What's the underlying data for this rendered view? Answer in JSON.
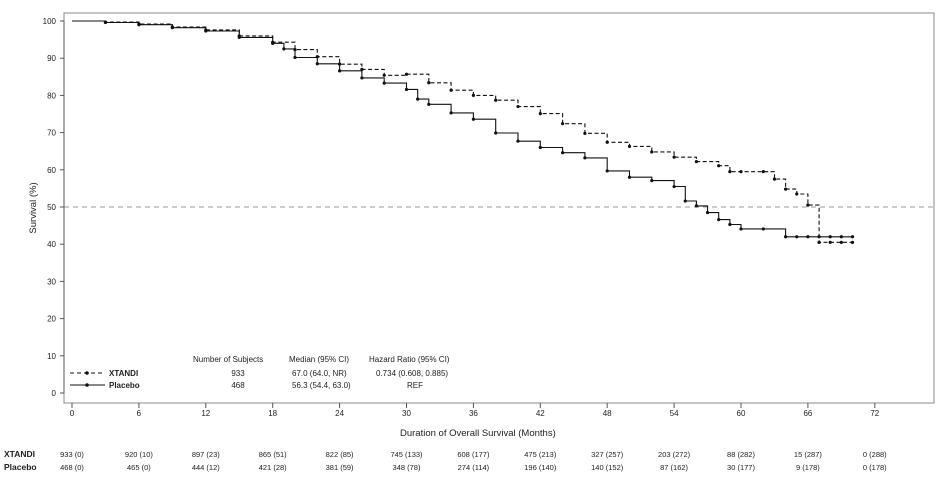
{
  "chart_data": {
    "type": "line",
    "xlabel": "Duration of Overall Survival (Months)",
    "ylabel": "Survival (%)",
    "xlim": [
      0,
      74
    ],
    "ylim": [
      0,
      100
    ],
    "x_ticks": [
      0,
      6,
      12,
      18,
      24,
      30,
      36,
      42,
      48,
      54,
      60,
      66,
      72
    ],
    "y_ticks": [
      0,
      10,
      20,
      30,
      40,
      50,
      60,
      70,
      80,
      90,
      100
    ],
    "reference_line": 50,
    "series": [
      {
        "name": "XTANDI",
        "color": "#111111",
        "line_style": "dashed",
        "x": [
          0,
          3,
          6,
          9,
          12,
          15,
          18,
          20,
          22,
          24,
          26,
          28,
          30,
          32,
          34,
          36,
          38,
          40,
          42,
          44,
          46,
          48,
          50,
          52,
          54,
          56,
          58,
          59,
          60,
          62,
          63,
          64,
          65,
          66,
          67,
          68,
          69,
          70
        ],
        "y": [
          100,
          99.7,
          99.2,
          98.4,
          97.6,
          96,
          94.3,
          92.3,
          90.4,
          88.4,
          87,
          85.4,
          85.7,
          83.4,
          81.4,
          80,
          78.7,
          77,
          75.1,
          72.4,
          69.8,
          67.4,
          66.3,
          64.8,
          63.4,
          62.2,
          61.1,
          59.5,
          59.5,
          59.5,
          57.5,
          54.8,
          53.5,
          50.5,
          40.5,
          40.5,
          40.5,
          40.5
        ]
      },
      {
        "name": "Placebo",
        "color": "#111111",
        "line_style": "solid",
        "x": [
          0,
          3,
          6,
          9,
          12,
          15,
          18,
          19,
          20,
          22,
          24,
          26,
          28,
          30,
          31,
          32,
          34,
          36,
          38,
          40,
          42,
          44,
          46,
          48,
          50,
          52,
          54,
          55,
          56,
          57,
          58,
          59,
          60,
          62,
          64,
          65,
          66,
          67,
          68,
          69,
          70
        ],
        "y": [
          100,
          99.6,
          99,
          98.2,
          97.3,
          95.6,
          94,
          92.5,
          90.2,
          88.5,
          86.6,
          84.7,
          83.3,
          81.6,
          79,
          77.6,
          75.3,
          73.6,
          69.9,
          67.7,
          66,
          64.6,
          63.2,
          59.7,
          58,
          57.1,
          55.5,
          51.6,
          50.3,
          48.5,
          46.6,
          45.3,
          44.1,
          44.1,
          42,
          42,
          42,
          42,
          42,
          42,
          42
        ]
      }
    ],
    "stats_table": {
      "headers": [
        "Number of Subjects",
        "Median (95% CI)",
        "Hazard Ratio (95% CI)"
      ],
      "rows": [
        {
          "name": "XTANDI",
          "subjects": "933",
          "median": "67.0 (64.0, NR)",
          "hr": "0.734 (0.608, 0.885)"
        },
        {
          "name": "Placebo",
          "subjects": "468",
          "median": "56.3 (54.4, 63.0)",
          "hr": "REF"
        }
      ]
    },
    "at_risk": {
      "times": [
        0,
        6,
        12,
        18,
        24,
        30,
        36,
        42,
        48,
        54,
        60,
        66,
        72
      ],
      "rows": [
        {
          "name": "XTANDI",
          "values": [
            "933 (0)",
            "920 (10)",
            "897 (23)",
            "865 (51)",
            "822 (85)",
            "745 (133)",
            "608 (177)",
            "475 (213)",
            "327 (257)",
            "203 (272)",
            "88 (282)",
            "15 (287)",
            "0 (288)"
          ]
        },
        {
          "name": "Placebo",
          "values": [
            "468 (0)",
            "465 (0)",
            "444 (12)",
            "421 (28)",
            "381 (59)",
            "348 (78)",
            "274 (114)",
            "196 (140)",
            "140 (152)",
            "87 (162)",
            "30 (177)",
            "9 (178)",
            "0 (178)"
          ]
        }
      ]
    }
  }
}
